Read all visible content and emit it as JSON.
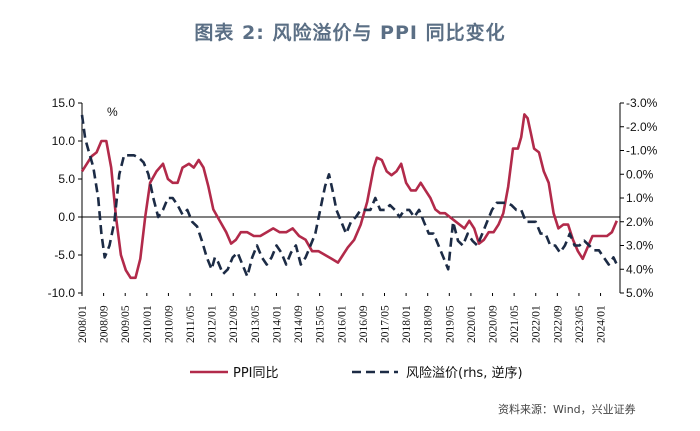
{
  "chart_data": {
    "type": "line",
    "title": "图表 2:  风险溢价与 PPI 同比变化",
    "unit_label": "%",
    "left_axis": {
      "ylim": [
        -10,
        15
      ],
      "ticks": [
        "15.0",
        "10.0",
        "5.0",
        "0.0",
        "-5.0",
        "-10.0"
      ],
      "tick_values": [
        15,
        10,
        5,
        0,
        -5,
        -10
      ]
    },
    "right_axis": {
      "ylim": [
        -3,
        5
      ],
      "inverted": true,
      "ticks": [
        "-3.0%",
        "-2.0%",
        "-1.0%",
        "0.0%",
        "1.0%",
        "2.0%",
        "3.0%",
        "4.0%",
        "5.0%"
      ],
      "tick_values": [
        -3,
        -2,
        -1,
        0,
        1,
        2,
        3,
        4,
        5
      ]
    },
    "x_range": [
      2008.0,
      2024.6
    ],
    "x_ticks": [
      "2008/01",
      "2008/09",
      "2009/05",
      "2010/01",
      "2010/09",
      "2011/05",
      "2012/01",
      "2012/09",
      "2013/05",
      "2014/01",
      "2014/09",
      "2015/05",
      "2016/01",
      "2016/09",
      "2017/05",
      "2018/01",
      "2018/09",
      "2019/05",
      "2020/01",
      "2020/09",
      "2021/05",
      "2022/01",
      "2022/09",
      "2023/05",
      "2024/01"
    ],
    "series": [
      {
        "name": "PPI同比",
        "axis": "left",
        "style": "solid",
        "color": "#b22a4a",
        "x": [
          2008.0,
          2008.3,
          2008.45,
          2008.6,
          2008.75,
          2008.9,
          2009.05,
          2009.2,
          2009.35,
          2009.5,
          2009.65,
          2009.8,
          2009.95,
          2010.1,
          2010.3,
          2010.5,
          2010.65,
          2010.8,
          2010.95,
          2011.1,
          2011.3,
          2011.45,
          2011.6,
          2011.75,
          2011.9,
          2012.05,
          2012.25,
          2012.45,
          2012.6,
          2012.75,
          2012.9,
          2013.1,
          2013.3,
          2013.5,
          2013.7,
          2013.9,
          2014.1,
          2014.3,
          2014.5,
          2014.7,
          2014.9,
          2015.1,
          2015.3,
          2015.5,
          2015.7,
          2015.9,
          2016.05,
          2016.2,
          2016.4,
          2016.6,
          2016.8,
          2017.0,
          2017.1,
          2017.25,
          2017.4,
          2017.55,
          2017.7,
          2017.85,
          2018.0,
          2018.15,
          2018.3,
          2018.45,
          2018.6,
          2018.75,
          2018.9,
          2019.05,
          2019.2,
          2019.35,
          2019.5,
          2019.65,
          2019.8,
          2019.95,
          2020.1,
          2020.25,
          2020.4,
          2020.55,
          2020.7,
          2020.85,
          2021.0,
          2021.15,
          2021.3,
          2021.45,
          2021.55,
          2021.65,
          2021.75,
          2021.85,
          2021.95,
          2022.1,
          2022.25,
          2022.4,
          2022.55,
          2022.7,
          2022.85,
          2023.0,
          2023.15,
          2023.3,
          2023.45,
          2023.6,
          2023.75,
          2023.9,
          2024.05,
          2024.2,
          2024.35,
          2024.5
        ],
        "values": [
          6.0,
          8.0,
          8.5,
          10.0,
          10.0,
          6.5,
          0.0,
          -5.0,
          -7.0,
          -8.0,
          -8.0,
          -5.5,
          0.0,
          4.5,
          6.0,
          7.0,
          5.0,
          4.5,
          4.5,
          6.5,
          7.0,
          6.5,
          7.5,
          6.5,
          4.0,
          1.0,
          -0.5,
          -2.0,
          -3.5,
          -3.0,
          -2.0,
          -2.0,
          -2.5,
          -2.5,
          -2.0,
          -1.5,
          -2.0,
          -2.0,
          -1.5,
          -2.5,
          -3.0,
          -4.5,
          -4.5,
          -5.0,
          -5.5,
          -6.0,
          -5.0,
          -4.0,
          -3.0,
          -1.0,
          2.0,
          6.5,
          7.8,
          7.5,
          6.0,
          5.5,
          6.0,
          7.0,
          4.5,
          3.5,
          3.5,
          4.5,
          3.5,
          2.5,
          1.0,
          0.5,
          0.5,
          0.0,
          -0.5,
          -1.0,
          -1.5,
          -0.5,
          -1.5,
          -3.5,
          -3.0,
          -2.0,
          -2.0,
          -1.0,
          0.5,
          4.0,
          9.0,
          9.0,
          10.5,
          13.5,
          13.0,
          11.0,
          9.0,
          8.5,
          6.0,
          4.5,
          0.5,
          -1.5,
          -1.0,
          -1.0,
          -3.0,
          -4.5,
          -5.5,
          -4.0,
          -2.5,
          -2.5,
          -2.5,
          -2.5,
          -2.0,
          -0.5
        ]
      },
      {
        "name": "风险溢价(rhs, 逆序)",
        "axis": "right",
        "style": "dashed",
        "color": "#1c2b45",
        "x": [
          2008.0,
          2008.1,
          2008.2,
          2008.35,
          2008.5,
          2008.6,
          2008.7,
          2008.85,
          2009.0,
          2009.15,
          2009.3,
          2009.45,
          2009.6,
          2009.75,
          2009.9,
          2010.05,
          2010.2,
          2010.35,
          2010.5,
          2010.65,
          2010.8,
          2010.95,
          2011.1,
          2011.25,
          2011.4,
          2011.55,
          2011.7,
          2011.85,
          2012.0,
          2012.1,
          2012.2,
          2012.35,
          2012.5,
          2012.65,
          2012.8,
          2012.95,
          2013.1,
          2013.25,
          2013.4,
          2013.55,
          2013.7,
          2013.85,
          2014.0,
          2014.15,
          2014.3,
          2014.45,
          2014.6,
          2014.75,
          2014.9,
          2015.05,
          2015.2,
          2015.35,
          2015.5,
          2015.62,
          2015.75,
          2015.85,
          2016.0,
          2016.15,
          2016.3,
          2016.45,
          2016.6,
          2016.75,
          2016.9,
          2017.05,
          2017.2,
          2017.35,
          2017.5,
          2017.65,
          2017.8,
          2017.95,
          2018.1,
          2018.25,
          2018.4,
          2018.55,
          2018.7,
          2018.85,
          2019.0,
          2019.15,
          2019.3,
          2019.45,
          2019.6,
          2019.75,
          2019.9,
          2020.05,
          2020.2,
          2020.35,
          2020.5,
          2020.65,
          2020.8,
          2020.95,
          2021.1,
          2021.25,
          2021.4,
          2021.55,
          2021.7,
          2021.85,
          2022.0,
          2022.15,
          2022.3,
          2022.45,
          2022.6,
          2022.75,
          2022.9,
          2023.05,
          2023.2,
          2023.35,
          2023.5,
          2023.65,
          2023.8,
          2023.95,
          2024.1,
          2024.25,
          2024.4,
          2024.5
        ],
        "values": [
          -2.5,
          -1.5,
          -1.0,
          -0.3,
          1.0,
          2.5,
          3.5,
          3.0,
          2.0,
          0.0,
          -0.8,
          -0.8,
          -0.8,
          -0.7,
          -0.5,
          0.0,
          1.0,
          1.8,
          1.5,
          1.0,
          1.0,
          1.3,
          1.7,
          1.5,
          2.0,
          2.2,
          2.8,
          3.5,
          4.0,
          3.5,
          3.7,
          4.2,
          4.0,
          3.5,
          3.3,
          3.8,
          4.3,
          3.5,
          3.0,
          3.5,
          3.8,
          3.5,
          3.0,
          3.3,
          3.8,
          3.3,
          3.0,
          3.8,
          3.5,
          3.0,
          2.5,
          1.5,
          0.5,
          0.0,
          0.8,
          1.5,
          2.0,
          2.5,
          2.0,
          1.8,
          1.5,
          1.5,
          1.5,
          1.0,
          1.5,
          1.5,
          1.3,
          1.5,
          1.8,
          1.5,
          1.5,
          1.8,
          1.5,
          2.0,
          2.5,
          2.5,
          3.0,
          3.5,
          4.0,
          2.0,
          2.8,
          3.0,
          2.5,
          2.8,
          3.0,
          2.5,
          2.0,
          1.5,
          1.2,
          1.2,
          1.2,
          1.3,
          1.5,
          1.5,
          2.0,
          2.0,
          2.0,
          2.5,
          2.5,
          3.0,
          3.0,
          3.3,
          3.0,
          2.5,
          3.0,
          3.0,
          2.8,
          3.0,
          3.2,
          3.2,
          3.5,
          3.8,
          3.5,
          3.8
        ]
      }
    ]
  },
  "header": {
    "title": "图表 2:  风险溢价与 PPI 同比变化"
  },
  "legend": {
    "ppi": "PPI同比",
    "risk": "风险溢价(rhs, 逆序)"
  },
  "footer": {
    "source": "资料来源：Wind，兴业证券"
  }
}
